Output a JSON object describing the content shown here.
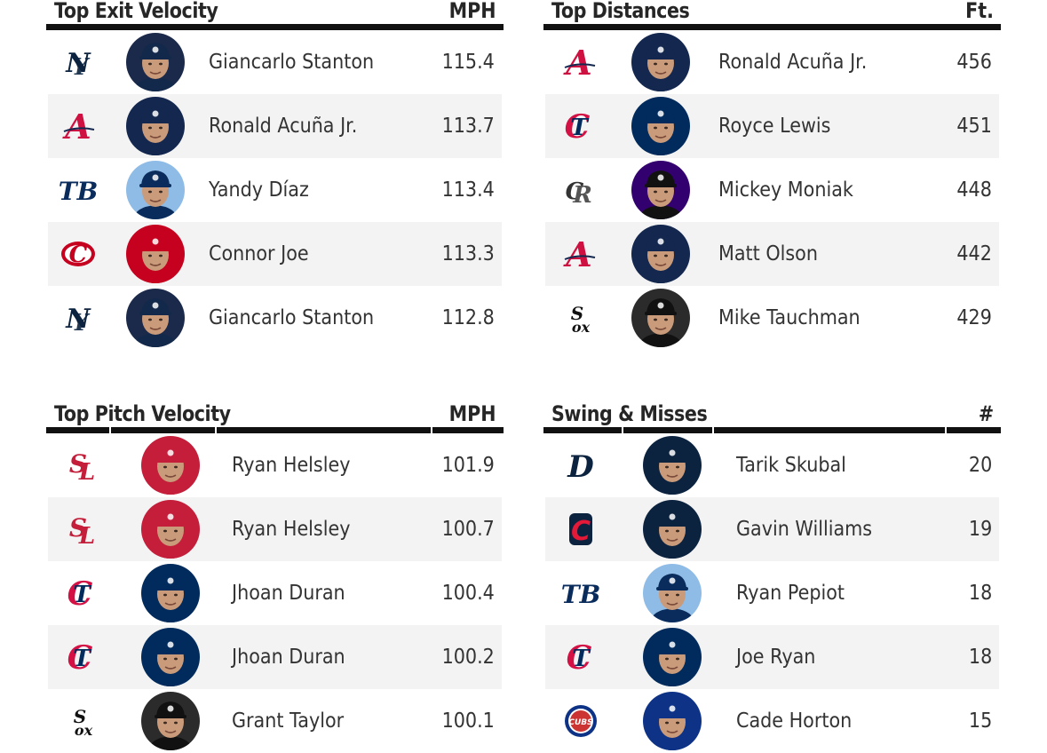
{
  "boards": {
    "exit_velocity": {
      "title": "Top Exit Velocity",
      "unit": "MPH",
      "rows": [
        {
          "team": "NYY",
          "player": "Giancarlo Stanton",
          "value": "115.4"
        },
        {
          "team": "ATL",
          "player": "Ronald Acuña Jr.",
          "value": "113.7"
        },
        {
          "team": "TB",
          "player": "Yandy Díaz",
          "value": "113.4"
        },
        {
          "team": "CIN",
          "player": "Connor Joe",
          "value": "113.3"
        },
        {
          "team": "NYY",
          "player": "Giancarlo Stanton",
          "value": "112.8"
        }
      ]
    },
    "distances": {
      "title": "Top Distances",
      "unit": "Ft.",
      "rows": [
        {
          "team": "ATL",
          "player": "Ronald Acuña Jr.",
          "value": "456"
        },
        {
          "team": "MIN",
          "player": "Royce Lewis",
          "value": "451"
        },
        {
          "team": "COL",
          "player": "Mickey Moniak",
          "value": "448"
        },
        {
          "team": "ATL",
          "player": "Matt Olson",
          "value": "442"
        },
        {
          "team": "CWS",
          "player": "Mike Tauchman",
          "value": "429"
        }
      ]
    },
    "pitch_velocity": {
      "title": "Top Pitch Velocity",
      "unit": "MPH",
      "rows": [
        {
          "team": "STL",
          "player": "Ryan Helsley",
          "value": "101.9"
        },
        {
          "team": "STL",
          "player": "Ryan Helsley",
          "value": "100.7"
        },
        {
          "team": "MIN",
          "player": "Jhoan Duran",
          "value": "100.4"
        },
        {
          "team": "MIN",
          "player": "Jhoan Duran",
          "value": "100.2"
        },
        {
          "team": "CWS",
          "player": "Grant Taylor",
          "value": "100.1"
        }
      ]
    },
    "swing_misses": {
      "title": "Swing & Misses",
      "unit": "#",
      "rows": [
        {
          "team": "DET",
          "player": "Tarik Skubal",
          "value": "20"
        },
        {
          "team": "CLE",
          "player": "Gavin Williams",
          "value": "19"
        },
        {
          "team": "TB",
          "player": "Ryan Pepiot",
          "value": "18"
        },
        {
          "team": "MIN",
          "player": "Joe Ryan",
          "value": "18"
        },
        {
          "team": "CHC",
          "player": "Cade Horton",
          "value": "15"
        }
      ]
    }
  },
  "teams": {
    "NYY": {
      "mark": "NY",
      "icon": "yankees-logo-icon",
      "color": "#0c2340",
      "cap": "#13294b",
      "bg": "#1b2a4a"
    },
    "ATL": {
      "mark": "A",
      "icon": "braves-logo-icon",
      "color": "#ce1141",
      "cap": "#13274f",
      "bg": "#13274f"
    },
    "TB": {
      "mark": "TB",
      "icon": "rays-logo-icon",
      "color": "#092c5c",
      "cap": "#092c5c",
      "bg": "#8fbce6"
    },
    "CIN": {
      "mark": "C",
      "icon": "reds-logo-icon",
      "color": "#c6011f",
      "cap": "#c6011f",
      "bg": "#c6011f"
    },
    "MIN": {
      "mark": "TC",
      "icon": "twins-logo-icon",
      "color": "#d31145",
      "cap": "#002b5c",
      "bg": "#002b5c"
    },
    "COL": {
      "mark": "CR",
      "icon": "rockies-logo-icon",
      "color": "#333333",
      "cap": "#111111",
      "bg": "#33006f"
    },
    "CWS": {
      "mark": "SX",
      "icon": "white-sox-logo-icon",
      "color": "#111111",
      "cap": "#111111",
      "bg": "#2b2b2b"
    },
    "STL": {
      "mark": "StL",
      "icon": "cardinals-logo-icon",
      "color": "#c41e3a",
      "cap": "#c41e3a",
      "bg": "#c41e3a"
    },
    "DET": {
      "mark": "D",
      "icon": "tigers-logo-icon",
      "color": "#0c2340",
      "cap": "#0c2340",
      "bg": "#0c2340"
    },
    "CLE": {
      "mark": "C",
      "icon": "guardians-logo-icon",
      "color": "#e31937",
      "cap": "#0c2340",
      "bg": "#0c2340"
    },
    "CHC": {
      "mark": "CUBS",
      "icon": "cubs-logo-icon",
      "color": "#0e3386",
      "cap": "#0e3386",
      "bg": "#0e3386"
    }
  }
}
